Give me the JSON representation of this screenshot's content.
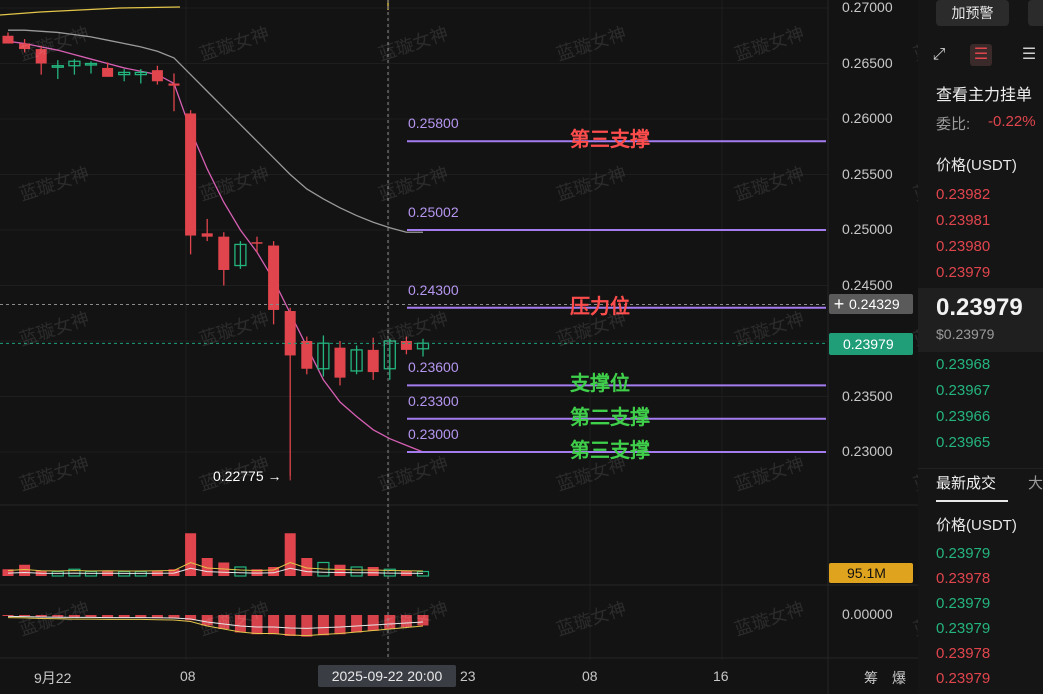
{
  "chart_data": {
    "type": "candlestick",
    "price_axis": {
      "ticks": [
        "0.27000",
        "0.26500",
        "0.26000",
        "0.25500",
        "0.25000",
        "0.24500",
        "0.24000",
        "0.23500",
        "0.23000"
      ],
      "range": [
        0.2292,
        0.2715
      ]
    },
    "x_axis": {
      "labels": [
        "9月22",
        "08",
        "23",
        "08",
        "16"
      ]
    },
    "candles": [
      {
        "o": 0.2675,
        "h": 0.2678,
        "l": 0.2668,
        "c": 0.2668
      },
      {
        "o": 0.2668,
        "h": 0.2672,
        "l": 0.266,
        "c": 0.2663
      },
      {
        "o": 0.2663,
        "h": 0.2666,
        "l": 0.264,
        "c": 0.265
      },
      {
        "o": 0.2648,
        "h": 0.2653,
        "l": 0.2636,
        "c": 0.2648
      },
      {
        "o": 0.2648,
        "h": 0.2654,
        "l": 0.264,
        "c": 0.2652
      },
      {
        "o": 0.265,
        "h": 0.2652,
        "l": 0.2641,
        "c": 0.265
      },
      {
        "o": 0.2646,
        "h": 0.2651,
        "l": 0.2638,
        "c": 0.2638
      },
      {
        "o": 0.264,
        "h": 0.2645,
        "l": 0.2634,
        "c": 0.2642
      },
      {
        "o": 0.264,
        "h": 0.2645,
        "l": 0.2632,
        "c": 0.2642
      },
      {
        "o": 0.2644,
        "h": 0.2648,
        "l": 0.2631,
        "c": 0.2634
      },
      {
        "o": 0.2632,
        "h": 0.2641,
        "l": 0.2607,
        "c": 0.263
      },
      {
        "o": 0.2605,
        "h": 0.2608,
        "l": 0.2478,
        "c": 0.2495
      },
      {
        "o": 0.2497,
        "h": 0.251,
        "l": 0.249,
        "c": 0.2494
      },
      {
        "o": 0.2494,
        "h": 0.2498,
        "l": 0.245,
        "c": 0.2464
      },
      {
        "o": 0.2468,
        "h": 0.249,
        "l": 0.2465,
        "c": 0.2487
      },
      {
        "o": 0.2489,
        "h": 0.2494,
        "l": 0.248,
        "c": 0.2488
      },
      {
        "o": 0.2486,
        "h": 0.249,
        "l": 0.2415,
        "c": 0.2428
      },
      {
        "o": 0.2427,
        "h": 0.243,
        "l": 0.2278,
        "c": 0.2387
      },
      {
        "o": 0.24,
        "h": 0.2404,
        "l": 0.237,
        "c": 0.2375
      },
      {
        "o": 0.2375,
        "h": 0.2405,
        "l": 0.2368,
        "c": 0.2398
      },
      {
        "o": 0.2394,
        "h": 0.24,
        "l": 0.236,
        "c": 0.2367
      },
      {
        "o": 0.2373,
        "h": 0.2396,
        "l": 0.237,
        "c": 0.2392
      },
      {
        "o": 0.2392,
        "h": 0.2403,
        "l": 0.2365,
        "c": 0.2372
      },
      {
        "o": 0.2375,
        "h": 0.2402,
        "l": 0.2365,
        "c": 0.24
      },
      {
        "o": 0.24,
        "h": 0.2404,
        "l": 0.2388,
        "c": 0.2392
      },
      {
        "o": 0.2393,
        "h": 0.2402,
        "l": 0.2386,
        "c": 0.2398
      }
    ],
    "ma_fast": [
      0.267,
      0.2668,
      0.2665,
      0.2662,
      0.2658,
      0.2654,
      0.265,
      0.2646,
      0.2643,
      0.264,
      0.2632,
      0.259,
      0.2555,
      0.2525,
      0.25,
      0.248,
      0.2455,
      0.2425,
      0.2395,
      0.2365,
      0.2345,
      0.2332,
      0.232,
      0.2312,
      0.2306,
      0.23
    ],
    "ma_slow": [
      0.268,
      0.268,
      0.2679,
      0.2678,
      0.2676,
      0.2674,
      0.2671,
      0.2668,
      0.2665,
      0.2661,
      0.2655,
      0.264,
      0.2625,
      0.261,
      0.2595,
      0.258,
      0.2565,
      0.255,
      0.2537,
      0.2528,
      0.252,
      0.2513,
      0.2507,
      0.2502,
      0.2498,
      0.2498
    ],
    "volume": [
      0.15,
      0.25,
      0.12,
      0.1,
      0.15,
      0.1,
      0.12,
      0.1,
      0.1,
      0.12,
      0.15,
      0.95,
      0.4,
      0.3,
      0.2,
      0.15,
      0.2,
      0.95,
      0.4,
      0.3,
      0.25,
      0.2,
      0.2,
      0.15,
      0.12,
      0.1
    ],
    "macd": [
      -0.02,
      -0.03,
      -0.05,
      -0.06,
      -0.07,
      -0.07,
      -0.08,
      -0.08,
      -0.08,
      -0.09,
      -0.1,
      -0.15,
      -0.3,
      -0.4,
      -0.5,
      -0.55,
      -0.55,
      -0.6,
      -0.62,
      -0.58,
      -0.55,
      -0.5,
      -0.45,
      -0.4,
      -0.35,
      -0.3
    ],
    "low_marker": "0.22775 →",
    "volume_tag": "95.1M",
    "macd_tick": "0.00000",
    "current_price": "0.23979",
    "crosshair_price": "0.24329",
    "crosshair_time": "2025-09-22 20:00"
  },
  "annotations": [
    {
      "price_label": "0.25800",
      "text": "第三支撑",
      "value": 0.258,
      "color": "#ff4d4d"
    },
    {
      "price_label": "0.25002",
      "text": "",
      "value": 0.25,
      "color": ""
    },
    {
      "price_label": "0.24300",
      "text": "压力位",
      "value": 0.243,
      "color": "#ff4d4d"
    },
    {
      "price_label": "0.23600",
      "text": "支撑位",
      "value": 0.236,
      "color": "#3fcf4a"
    },
    {
      "price_label": "0.23300",
      "text": "第二支撑",
      "value": 0.233,
      "color": "#3fcf4a"
    },
    {
      "price_label": "0.23000",
      "text": "第三支撑",
      "value": 0.23,
      "color": "#3fcf4a"
    }
  ],
  "watermark": "蓝璇女神",
  "panel": {
    "alert_button": "加预警",
    "order_book_title": "查看主力挂单",
    "ratio_label": "委比:",
    "ratio_value": "-0.22%",
    "price_header": "价格(USDT)",
    "asks": [
      "0.23982",
      "0.23981",
      "0.23980",
      "0.23979"
    ],
    "current_big": "0.23979",
    "current_small": "$0.23979",
    "bids": [
      "0.23968",
      "0.23967",
      "0.23966",
      "0.23965"
    ],
    "trades_tab": "最新成交",
    "trades_tab2": "大",
    "trades_header": "价格(USDT)",
    "trades": [
      {
        "price": "0.23979",
        "side": "buy"
      },
      {
        "price": "0.23978",
        "side": "sell"
      },
      {
        "price": "0.23979",
        "side": "buy"
      },
      {
        "price": "0.23979",
        "side": "buy"
      },
      {
        "price": "0.23978",
        "side": "sell"
      },
      {
        "price": "0.23979",
        "side": "sell"
      }
    ],
    "bottom_labels": [
      "筹",
      "爆"
    ]
  },
  "colors": {
    "up": "#24b47e",
    "down": "#e0454d",
    "ma_fast": "#d65fb3",
    "ma_slow": "#9a9a9a",
    "level": "#a47cf0"
  }
}
